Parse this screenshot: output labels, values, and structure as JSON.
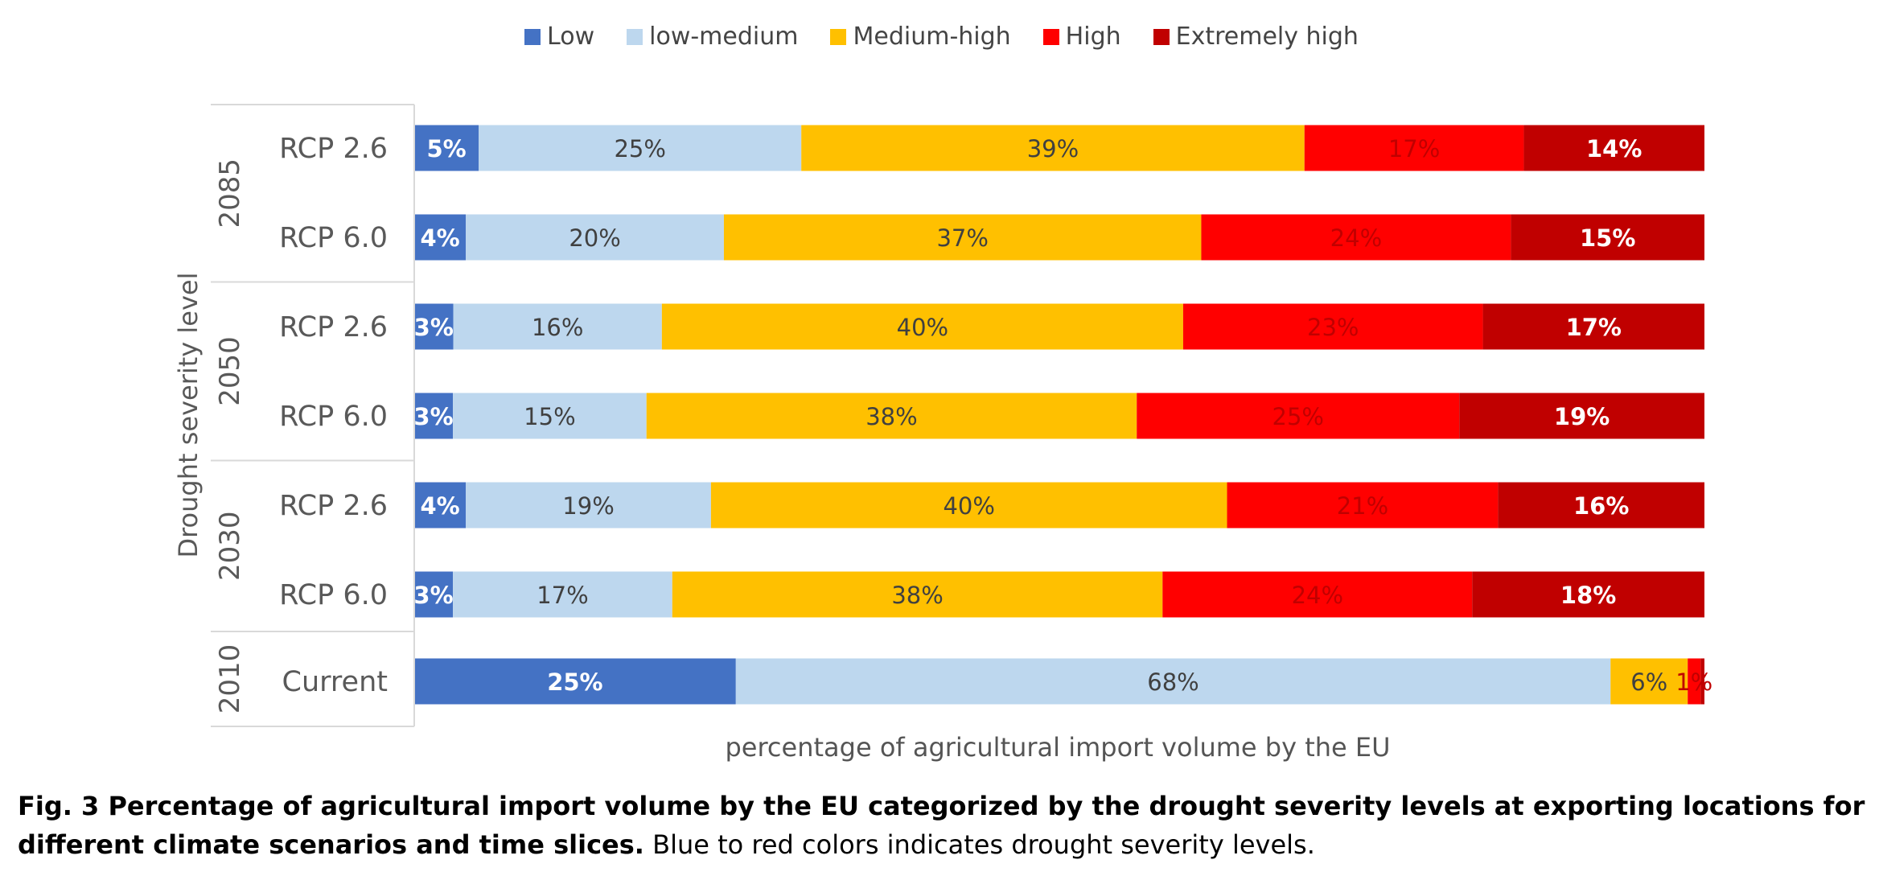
{
  "chart_data": {
    "type": "bar",
    "orientation": "horizontal",
    "stacked": true,
    "xlabel": "percentage of agricultural import volume by the EU",
    "ylabel": "Drought severity level",
    "xlim": [
      0,
      100
    ],
    "legend_position": "top-center",
    "grid": false,
    "groups": [
      {
        "label": "2085",
        "categories": [
          "RCP 2.6",
          "RCP 6.0"
        ]
      },
      {
        "label": "2050",
        "categories": [
          "RCP 2.6",
          "RCP 6.0"
        ]
      },
      {
        "label": "2030",
        "categories": [
          "RCP 2.6",
          "RCP 6.0"
        ]
      },
      {
        "label": "2010",
        "categories": [
          "Current"
        ]
      }
    ],
    "categories": [
      "RCP 2.6",
      "RCP 6.0",
      "RCP 2.6",
      "RCP 6.0",
      "RCP 2.6",
      "RCP 6.0",
      "Current"
    ],
    "series": [
      {
        "name": "Low",
        "color": "#4472c4",
        "label_color": "#ffffff",
        "values": [
          5,
          4,
          3,
          3,
          4,
          3,
          25
        ],
        "labels": [
          "5%",
          "4%",
          "3%",
          "3%",
          "4%",
          "3%",
          "25%"
        ]
      },
      {
        "name": "low-medium",
        "color": "#bdd7ee",
        "label_color": "#404040",
        "values": [
          25,
          20,
          16,
          15,
          19,
          17,
          68
        ],
        "labels": [
          "25%",
          "20%",
          "16%",
          "15%",
          "19%",
          "17%",
          "68%"
        ]
      },
      {
        "name": "Medium-high",
        "color": "#ffc000",
        "label_color": "#404040",
        "values": [
          39,
          37,
          40,
          38,
          40,
          38,
          6
        ],
        "labels": [
          "39%",
          "37%",
          "40%",
          "38%",
          "40%",
          "38%",
          "6%"
        ]
      },
      {
        "name": "High",
        "color": "#ff0000",
        "label_color": "#c00000",
        "values": [
          17,
          24,
          23,
          25,
          21,
          24,
          1
        ],
        "labels": [
          "17%",
          "24%",
          "23%",
          "25%",
          "21%",
          "24%",
          "1%"
        ]
      },
      {
        "name": "Extremely high",
        "color": "#c00000",
        "label_color": "#ffffff",
        "values": [
          14,
          15,
          17,
          19,
          16,
          18,
          0.3
        ],
        "labels": [
          "14%",
          "15%",
          "17%",
          "19%",
          "16%",
          "18%",
          ""
        ]
      }
    ]
  },
  "caption": {
    "bold": "Fig. 3 Percentage of agricultural import volume by the EU categorized by the drought severity levels at exporting locations for different climate scenarios and time slices.",
    "normal": " Blue to red colors indicates drought severity levels."
  }
}
